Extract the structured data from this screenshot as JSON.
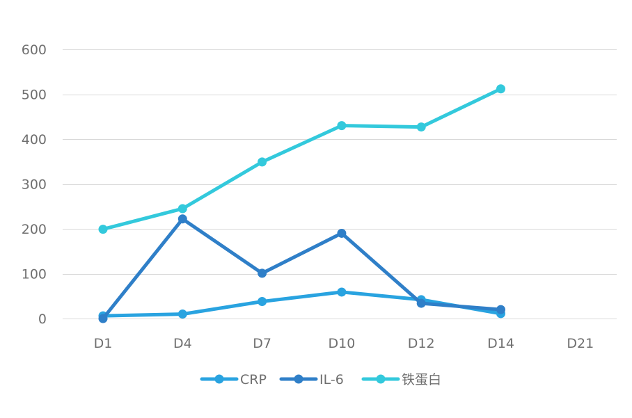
{
  "chart_data": {
    "type": "line",
    "title": "",
    "xlabel": "",
    "ylabel": "",
    "categories": [
      "D1",
      "D4",
      "D7",
      "D10",
      "D12",
      "D14",
      "D21"
    ],
    "ylim": [
      0,
      600
    ],
    "yticks": [
      0,
      100,
      200,
      300,
      400,
      500,
      600
    ],
    "grid": true,
    "legend": "bottom",
    "series": [
      {
        "name": "CRP",
        "color": "#29a3e0",
        "values": [
          6,
          10,
          38,
          59,
          42,
          11,
          null
        ]
      },
      {
        "name": "IL-6",
        "color": "#2f7fc8",
        "values": [
          0,
          222,
          101,
          190,
          34,
          20,
          null
        ]
      },
      {
        "name": "铁蛋白",
        "color": "#33c9dc",
        "values": [
          199,
          245,
          349,
          430,
          427,
          512,
          null
        ]
      }
    ]
  }
}
